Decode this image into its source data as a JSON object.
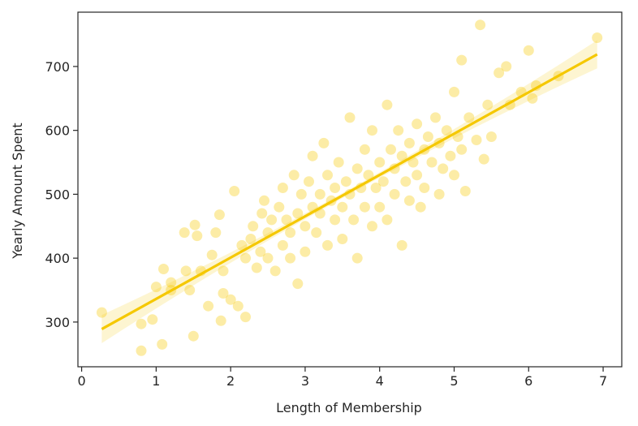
{
  "chart_data": {
    "type": "scatter",
    "title": "",
    "xlabel": "Length of Membership",
    "ylabel": "Yearly Amount Spent",
    "xlim": [
      -0.05,
      7.25
    ],
    "ylim": [
      230,
      785
    ],
    "xticks": [
      0,
      1,
      2,
      3,
      4,
      5,
      6,
      7
    ],
    "yticks": [
      300,
      400,
      500,
      600,
      700
    ],
    "grid": false,
    "legend": "none",
    "colors": {
      "point": "#f5c800",
      "line": "#f5c800",
      "band": "#f5c800",
      "axis": "#262626"
    },
    "regression": {
      "x": [
        0.27,
        6.92
      ],
      "y": [
        289,
        719
      ]
    },
    "series": [
      {
        "points": [
          [
            0.27,
            315
          ],
          [
            0.8,
            297
          ],
          [
            0.8,
            255
          ],
          [
            0.95,
            304
          ],
          [
            1.0,
            355
          ],
          [
            1.08,
            265
          ],
          [
            1.1,
            383
          ],
          [
            1.2,
            362
          ],
          [
            1.2,
            350
          ],
          [
            1.38,
            440
          ],
          [
            1.4,
            380
          ],
          [
            1.45,
            350
          ],
          [
            1.5,
            278
          ],
          [
            1.52,
            452
          ],
          [
            1.55,
            435
          ],
          [
            1.6,
            380
          ],
          [
            1.7,
            325
          ],
          [
            1.75,
            405
          ],
          [
            1.8,
            440
          ],
          [
            1.85,
            468
          ],
          [
            1.87,
            302
          ],
          [
            1.9,
            380
          ],
          [
            1.9,
            345
          ],
          [
            2.0,
            335
          ],
          [
            2.05,
            505
          ],
          [
            2.1,
            325
          ],
          [
            2.15,
            420
          ],
          [
            2.2,
            400
          ],
          [
            2.2,
            308
          ],
          [
            2.27,
            430
          ],
          [
            2.3,
            450
          ],
          [
            2.35,
            385
          ],
          [
            2.4,
            410
          ],
          [
            2.42,
            470
          ],
          [
            2.45,
            490
          ],
          [
            2.5,
            440
          ],
          [
            2.5,
            400
          ],
          [
            2.55,
            460
          ],
          [
            2.6,
            380
          ],
          [
            2.65,
            480
          ],
          [
            2.7,
            420
          ],
          [
            2.7,
            510
          ],
          [
            2.75,
            460
          ],
          [
            2.8,
            440
          ],
          [
            2.8,
            400
          ],
          [
            2.85,
            530
          ],
          [
            2.9,
            470
          ],
          [
            2.9,
            360
          ],
          [
            2.95,
            500
          ],
          [
            3.0,
            450
          ],
          [
            3.0,
            410
          ],
          [
            3.05,
            520
          ],
          [
            3.1,
            480
          ],
          [
            3.1,
            560
          ],
          [
            3.15,
            440
          ],
          [
            3.2,
            500
          ],
          [
            3.2,
            470
          ],
          [
            3.25,
            580
          ],
          [
            3.3,
            420
          ],
          [
            3.3,
            530
          ],
          [
            3.35,
            490
          ],
          [
            3.4,
            460
          ],
          [
            3.4,
            510
          ],
          [
            3.45,
            550
          ],
          [
            3.5,
            480
          ],
          [
            3.5,
            430
          ],
          [
            3.55,
            520
          ],
          [
            3.6,
            500
          ],
          [
            3.6,
            620
          ],
          [
            3.65,
            460
          ],
          [
            3.7,
            540
          ],
          [
            3.7,
            400
          ],
          [
            3.75,
            510
          ],
          [
            3.8,
            480
          ],
          [
            3.8,
            570
          ],
          [
            3.85,
            530
          ],
          [
            3.9,
            450
          ],
          [
            3.9,
            600
          ],
          [
            3.95,
            510
          ],
          [
            4.0,
            550
          ],
          [
            4.0,
            480
          ],
          [
            4.05,
            520
          ],
          [
            4.1,
            640
          ],
          [
            4.1,
            460
          ],
          [
            4.15,
            570
          ],
          [
            4.2,
            500
          ],
          [
            4.2,
            540
          ],
          [
            4.25,
            600
          ],
          [
            4.3,
            420
          ],
          [
            4.3,
            560
          ],
          [
            4.35,
            520
          ],
          [
            4.4,
            580
          ],
          [
            4.4,
            490
          ],
          [
            4.45,
            550
          ],
          [
            4.5,
            610
          ],
          [
            4.5,
            530
          ],
          [
            4.55,
            480
          ],
          [
            4.6,
            570
          ],
          [
            4.6,
            510
          ],
          [
            4.65,
            590
          ],
          [
            4.7,
            550
          ],
          [
            4.75,
            620
          ],
          [
            4.8,
            500
          ],
          [
            4.8,
            580
          ],
          [
            4.85,
            540
          ],
          [
            4.9,
            600
          ],
          [
            4.95,
            560
          ],
          [
            5.0,
            660
          ],
          [
            5.0,
            530
          ],
          [
            5.05,
            590
          ],
          [
            5.1,
            710
          ],
          [
            5.1,
            570
          ],
          [
            5.15,
            505
          ],
          [
            5.2,
            620
          ],
          [
            5.3,
            585
          ],
          [
            5.35,
            765
          ],
          [
            5.4,
            555
          ],
          [
            5.45,
            640
          ],
          [
            5.5,
            590
          ],
          [
            5.6,
            690
          ],
          [
            5.7,
            700
          ],
          [
            5.75,
            640
          ],
          [
            5.9,
            660
          ],
          [
            6.0,
            725
          ],
          [
            6.05,
            650
          ],
          [
            6.1,
            670
          ],
          [
            6.4,
            685
          ],
          [
            6.92,
            745
          ]
        ]
      }
    ]
  }
}
